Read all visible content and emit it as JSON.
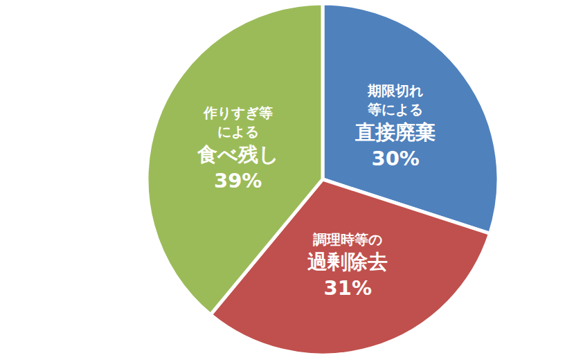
{
  "chart_data": {
    "type": "pie",
    "categories": [
      "期限切れ\n等による\n直接廃棄",
      "調理時等の\n過剰除去",
      "作りすぎ等\nによる\n食べ残し"
    ],
    "values": [
      30,
      31,
      39
    ],
    "value_labels": [
      "30%",
      "31%",
      "39%"
    ],
    "colors": [
      "#4f81bd",
      "#c0504d",
      "#9bbb59"
    ],
    "data_labels": true
  }
}
